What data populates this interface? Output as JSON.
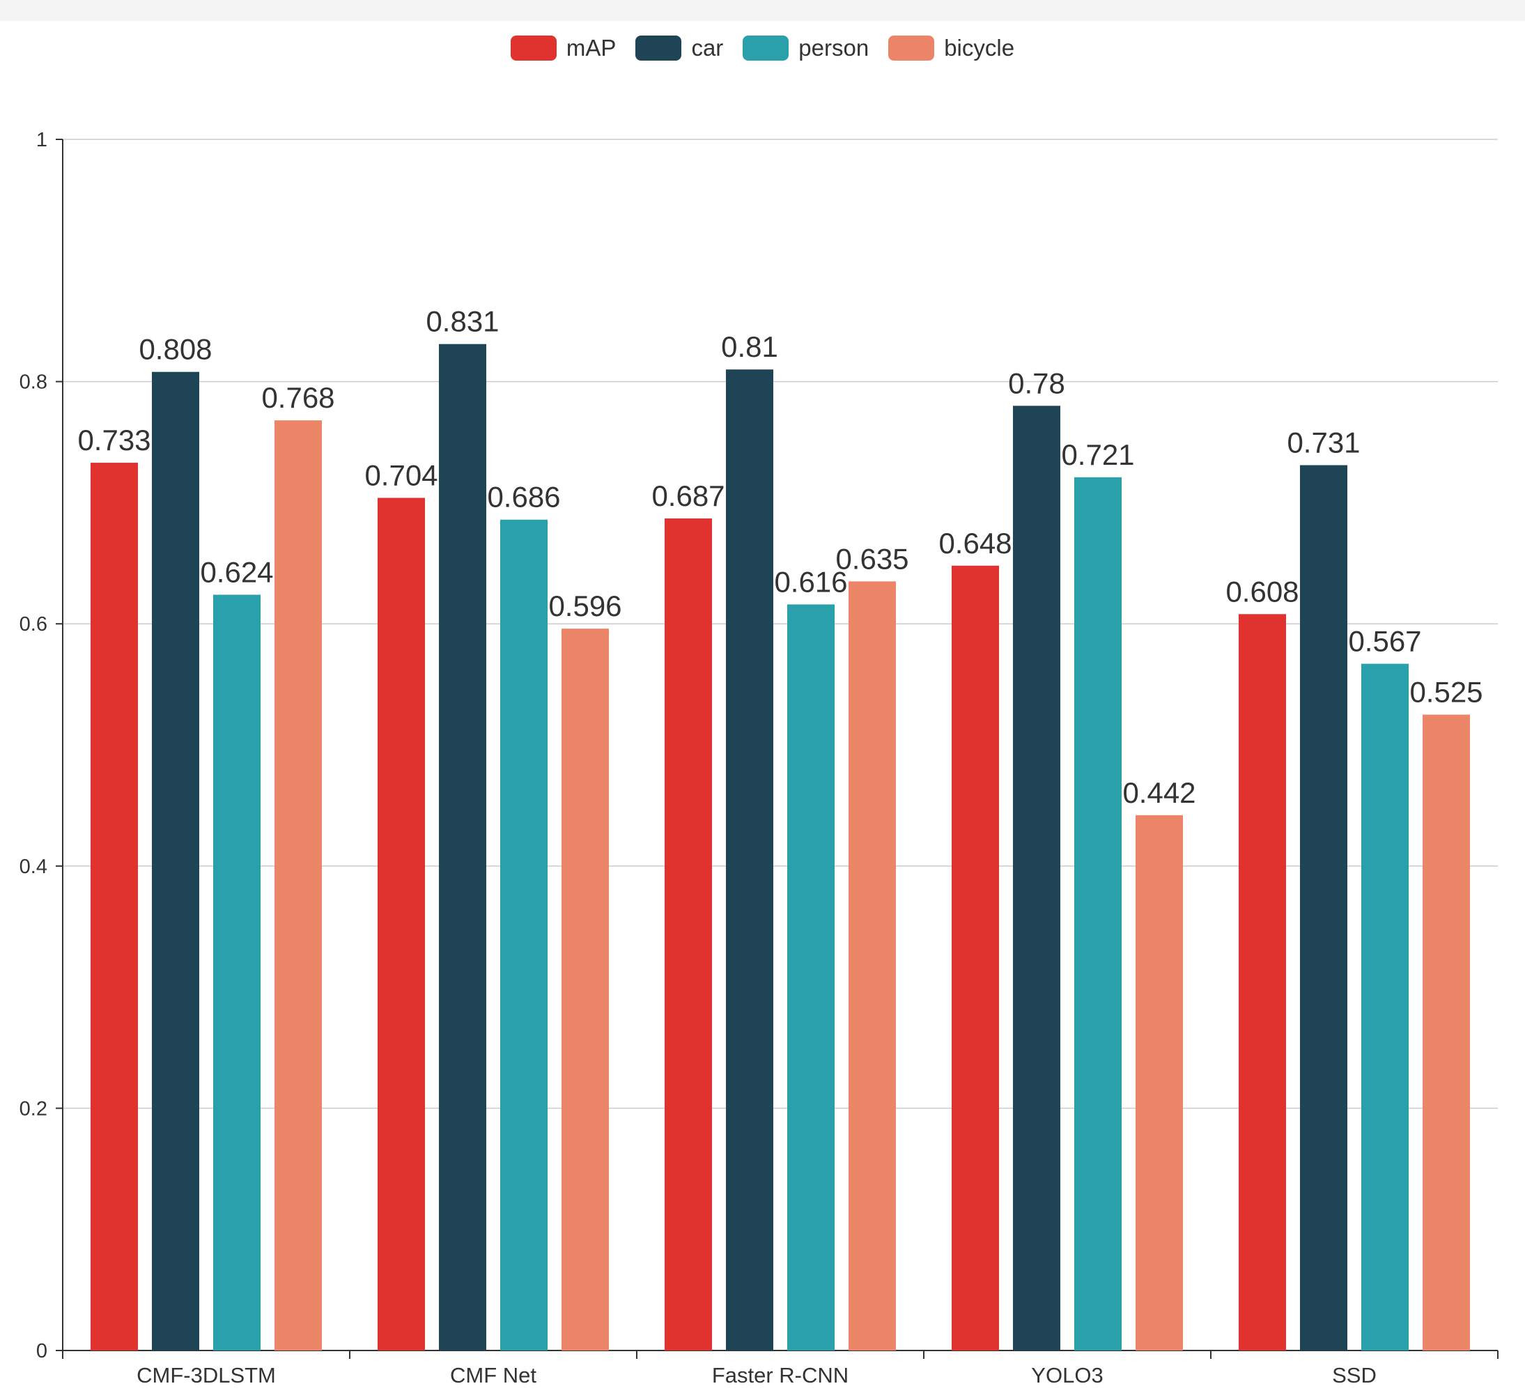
{
  "chart_data": {
    "type": "bar",
    "categories": [
      "CMF-3DLSTM",
      "CMF Net",
      "Faster R-CNN",
      "YOLO3",
      "SSD"
    ],
    "series": [
      {
        "name": "mAP",
        "color": "#e0322f",
        "values": [
          0.733,
          0.704,
          0.687,
          0.648,
          0.608
        ]
      },
      {
        "name": "car",
        "color": "#1f4455",
        "values": [
          0.808,
          0.831,
          0.81,
          0.78,
          0.731
        ]
      },
      {
        "name": "person",
        "color": "#2aa1aa",
        "values": [
          0.624,
          0.686,
          0.616,
          0.721,
          0.567
        ]
      },
      {
        "name": "bicycle",
        "color": "#ec8467",
        "values": [
          0.768,
          0.596,
          0.635,
          0.442,
          0.525
        ]
      }
    ],
    "yticks": [
      "0",
      "0.2",
      "0.4",
      "0.6",
      "0.8",
      "1"
    ],
    "ylim": [
      0,
      1
    ],
    "title": "",
    "xlabel": "",
    "ylabel": "",
    "grid": true,
    "legend_position": "top-center"
  }
}
